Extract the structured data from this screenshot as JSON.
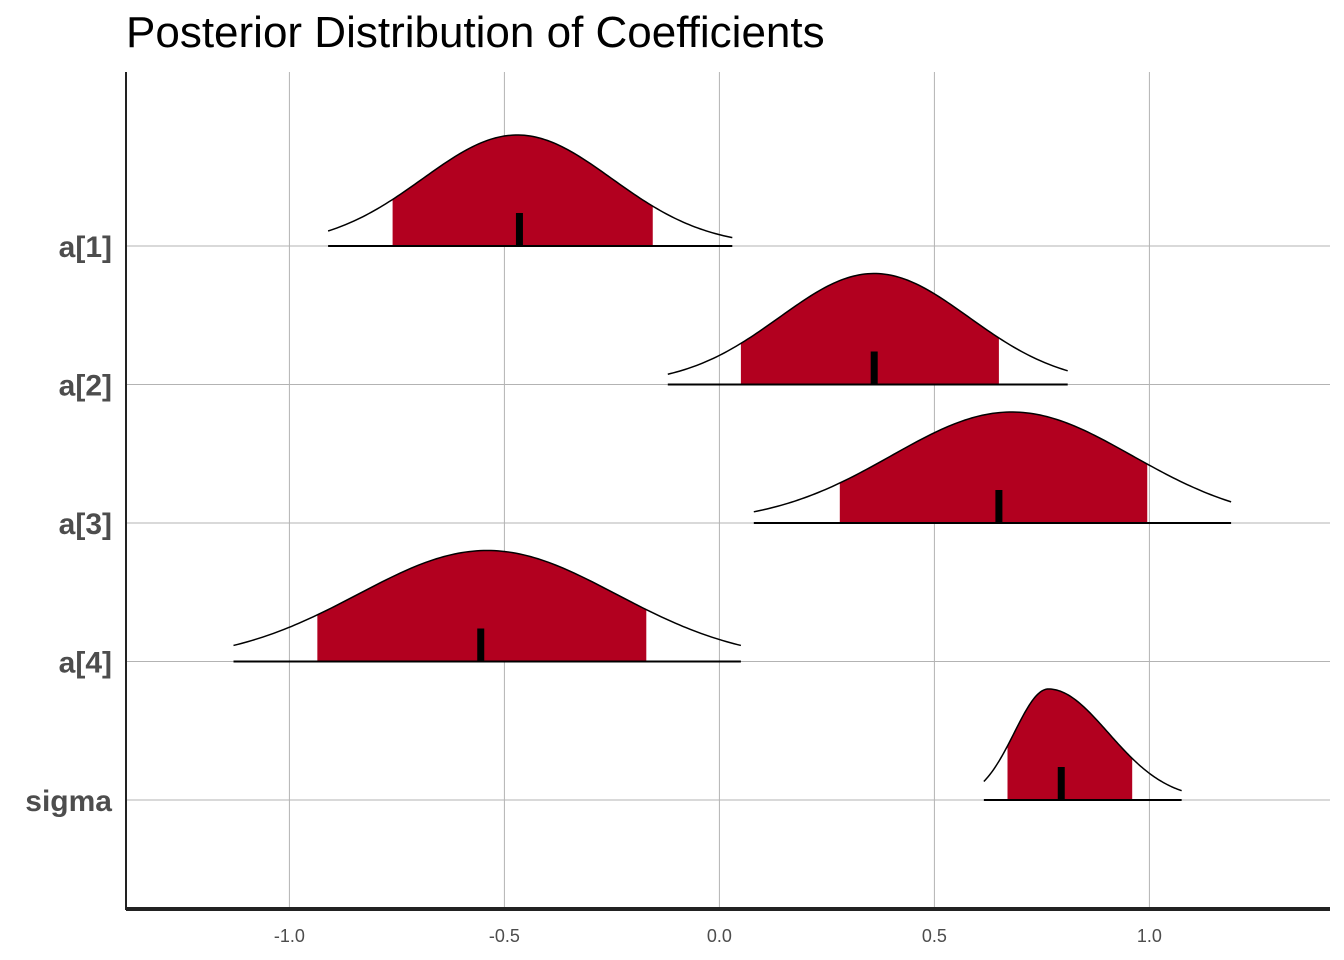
{
  "chart_data": {
    "type": "density_ridges",
    "title": "Posterior Distribution of Coefficients",
    "xlabel": "",
    "ylabel": "",
    "xlim": [
      -1.38,
      1.42
    ],
    "x_ticks": [
      -1.0,
      -0.5,
      0.0,
      0.5,
      1.0
    ],
    "x_tick_labels": [
      "-1.0",
      "-0.5",
      "0.0",
      "0.5",
      "1.0"
    ],
    "grid": true,
    "fill_color": "#b2001f",
    "series": [
      {
        "name": "a[1]",
        "range": [
          -0.91,
          0.03
        ],
        "interval": [
          -0.76,
          -0.155
        ],
        "median": -0.465,
        "peak": -0.47,
        "sd": 0.22,
        "skew": 0.0
      },
      {
        "name": "a[2]",
        "range": [
          -0.12,
          0.81
        ],
        "interval": [
          0.05,
          0.65
        ],
        "median": 0.36,
        "peak": 0.36,
        "sd": 0.22,
        "skew": 0.0
      },
      {
        "name": "a[3]",
        "range": [
          0.08,
          1.19
        ],
        "interval": [
          0.28,
          0.995
        ],
        "median": 0.65,
        "peak": 0.68,
        "sd": 0.28,
        "skew": 0.0
      },
      {
        "name": "a[4]",
        "range": [
          -1.13,
          0.05
        ],
        "interval": [
          -0.935,
          -0.17
        ],
        "median": -0.555,
        "peak": -0.54,
        "sd": 0.3,
        "skew": 0.0
      },
      {
        "name": "sigma",
        "range": [
          0.615,
          1.075
        ],
        "interval": [
          0.67,
          0.96
        ],
        "median": 0.795,
        "peak": 0.765,
        "sd": 0.105,
        "skew": 1.3
      }
    ]
  }
}
